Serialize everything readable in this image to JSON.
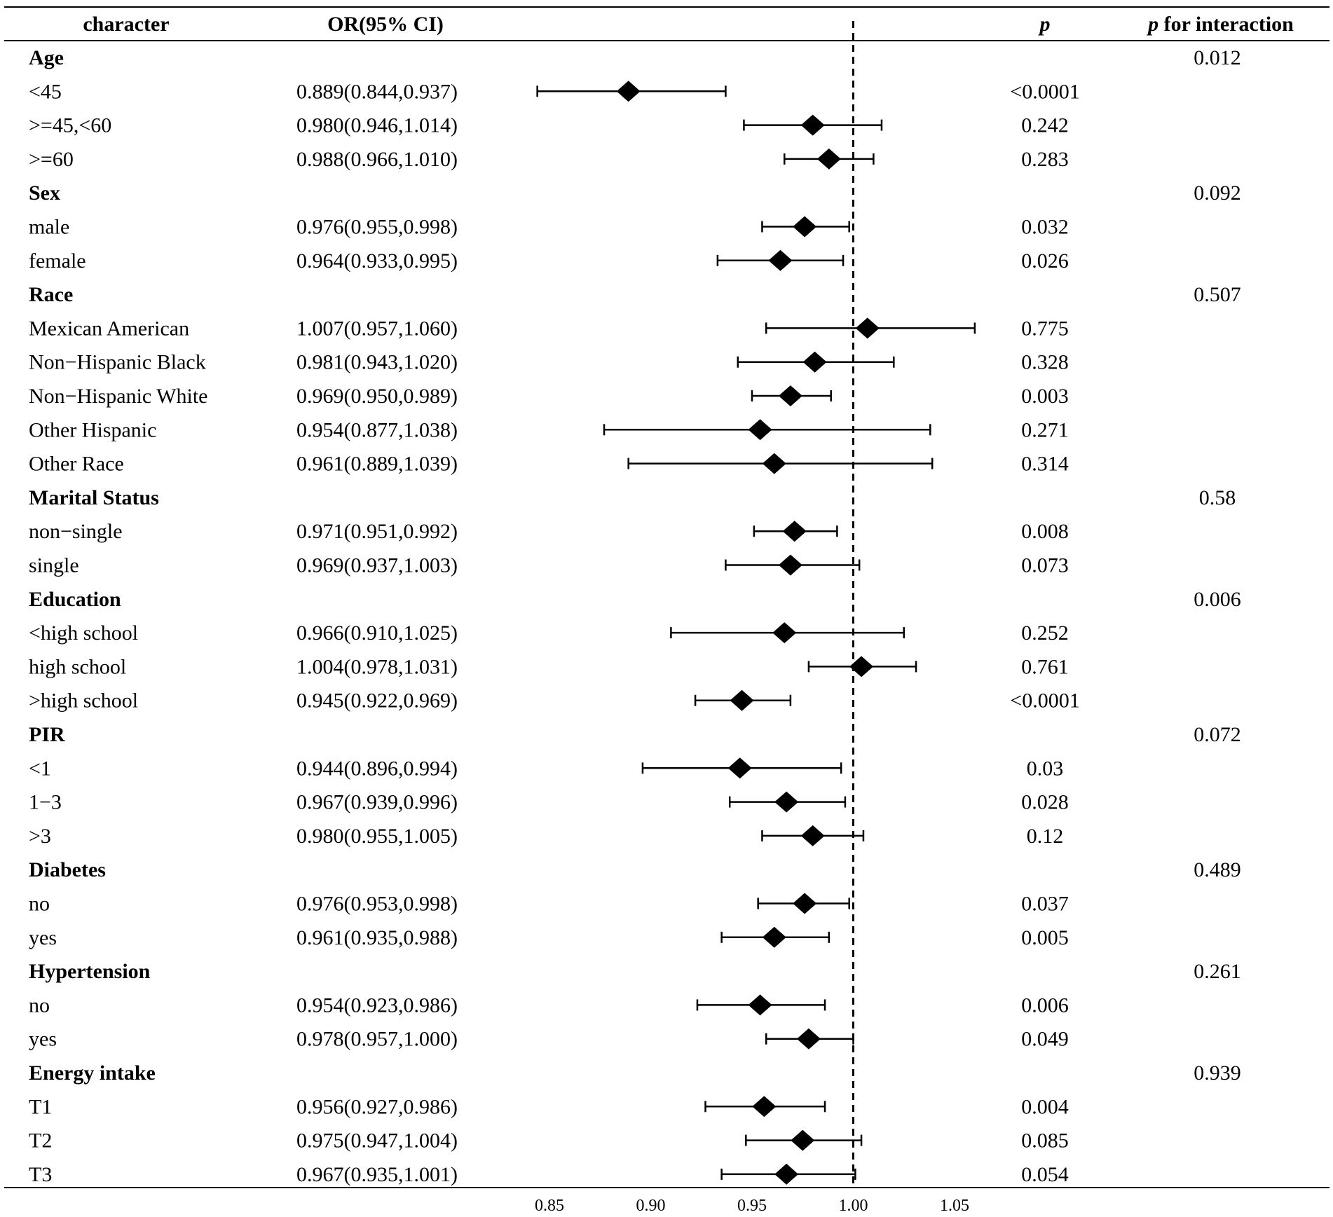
{
  "chart_data": {
    "type": "forest",
    "headers": {
      "character": "character",
      "or_ci": "OR(95% CI)",
      "p": "p",
      "p_interaction_p": "p",
      "p_interaction_rest": " for interaction"
    },
    "reference_line": 1.0,
    "xlim": [
      0.85,
      1.05
    ],
    "x_ticks": [
      0.85,
      0.9,
      0.95,
      1.0,
      1.05
    ],
    "x_tick_labels": [
      "0.85",
      "0.90",
      "0.95",
      "1.00",
      "1.05"
    ],
    "groups": [
      {
        "name": "Age",
        "p_interaction": "0.012",
        "rows": [
          {
            "label": "<45",
            "or_text": "0.889(0.844,0.937)",
            "or": 0.889,
            "lo": 0.844,
            "hi": 0.937,
            "p": "<0.0001"
          },
          {
            "label": ">=45,<60",
            "or_text": "0.980(0.946,1.014)",
            "or": 0.98,
            "lo": 0.946,
            "hi": 1.014,
            "p": "0.242"
          },
          {
            "label": ">=60",
            "or_text": "0.988(0.966,1.010)",
            "or": 0.988,
            "lo": 0.966,
            "hi": 1.01,
            "p": "0.283"
          }
        ]
      },
      {
        "name": "Sex",
        "p_interaction": "0.092",
        "rows": [
          {
            "label": "male",
            "or_text": "0.976(0.955,0.998)",
            "or": 0.976,
            "lo": 0.955,
            "hi": 0.998,
            "p": "0.032"
          },
          {
            "label": "female",
            "or_text": "0.964(0.933,0.995)",
            "or": 0.964,
            "lo": 0.933,
            "hi": 0.995,
            "p": "0.026"
          }
        ]
      },
      {
        "name": "Race",
        "p_interaction": "0.507",
        "rows": [
          {
            "label": "Mexican American",
            "or_text": "1.007(0.957,1.060)",
            "or": 1.007,
            "lo": 0.957,
            "hi": 1.06,
            "p": "0.775"
          },
          {
            "label": "Non−Hispanic Black",
            "or_text": "0.981(0.943,1.020)",
            "or": 0.981,
            "lo": 0.943,
            "hi": 1.02,
            "p": "0.328"
          },
          {
            "label": "Non−Hispanic White",
            "or_text": "0.969(0.950,0.989)",
            "or": 0.969,
            "lo": 0.95,
            "hi": 0.989,
            "p": "0.003"
          },
          {
            "label": "Other Hispanic",
            "or_text": "0.954(0.877,1.038)",
            "or": 0.954,
            "lo": 0.877,
            "hi": 1.038,
            "p": "0.271"
          },
          {
            "label": "Other Race",
            "or_text": "0.961(0.889,1.039)",
            "or": 0.961,
            "lo": 0.889,
            "hi": 1.039,
            "p": "0.314"
          }
        ]
      },
      {
        "name": "Marital Status",
        "p_interaction": "0.58",
        "rows": [
          {
            "label": "non−single",
            "or_text": "0.971(0.951,0.992)",
            "or": 0.971,
            "lo": 0.951,
            "hi": 0.992,
            "p": "0.008"
          },
          {
            "label": "single",
            "or_text": "0.969(0.937,1.003)",
            "or": 0.969,
            "lo": 0.937,
            "hi": 1.003,
            "p": "0.073"
          }
        ]
      },
      {
        "name": "Education",
        "p_interaction": "0.006",
        "rows": [
          {
            "label": "<high school",
            "or_text": "0.966(0.910,1.025)",
            "or": 0.966,
            "lo": 0.91,
            "hi": 1.025,
            "p": "0.252"
          },
          {
            "label": "high school",
            "or_text": "1.004(0.978,1.031)",
            "or": 1.004,
            "lo": 0.978,
            "hi": 1.031,
            "p": "0.761"
          },
          {
            "label": ">high school",
            "or_text": "0.945(0.922,0.969)",
            "or": 0.945,
            "lo": 0.922,
            "hi": 0.969,
            "p": "<0.0001"
          }
        ]
      },
      {
        "name": "PIR",
        "p_interaction": "0.072",
        "rows": [
          {
            "label": "<1",
            "or_text": "0.944(0.896,0.994)",
            "or": 0.944,
            "lo": 0.896,
            "hi": 0.994,
            "p": "0.03"
          },
          {
            "label": "1−3",
            "or_text": "0.967(0.939,0.996)",
            "or": 0.967,
            "lo": 0.939,
            "hi": 0.996,
            "p": "0.028"
          },
          {
            "label": ">3",
            "or_text": "0.980(0.955,1.005)",
            "or": 0.98,
            "lo": 0.955,
            "hi": 1.005,
            "p": "0.12"
          }
        ]
      },
      {
        "name": "Diabetes",
        "p_interaction": "0.489",
        "rows": [
          {
            "label": "no",
            "or_text": "0.976(0.953,0.998)",
            "or": 0.976,
            "lo": 0.953,
            "hi": 0.998,
            "p": "0.037"
          },
          {
            "label": "yes",
            "or_text": "0.961(0.935,0.988)",
            "or": 0.961,
            "lo": 0.935,
            "hi": 0.988,
            "p": "0.005"
          }
        ]
      },
      {
        "name": "Hypertension",
        "p_interaction": "0.261",
        "rows": [
          {
            "label": "no",
            "or_text": "0.954(0.923,0.986)",
            "or": 0.954,
            "lo": 0.923,
            "hi": 0.986,
            "p": "0.006"
          },
          {
            "label": "yes",
            "or_text": "0.978(0.957,1.000)",
            "or": 0.978,
            "lo": 0.957,
            "hi": 1.0,
            "p": "0.049"
          }
        ]
      },
      {
        "name": "Energy intake",
        "p_interaction": "0.939",
        "rows": [
          {
            "label": "T1",
            "or_text": "0.956(0.927,0.986)",
            "or": 0.956,
            "lo": 0.927,
            "hi": 0.986,
            "p": "0.004"
          },
          {
            "label": "T2",
            "or_text": "0.975(0.947,1.004)",
            "or": 0.975,
            "lo": 0.947,
            "hi": 1.004,
            "p": "0.085"
          },
          {
            "label": "T3",
            "or_text": "0.967(0.935,1.001)",
            "or": 0.967,
            "lo": 0.935,
            "hi": 1.001,
            "p": "0.054"
          }
        ]
      }
    ]
  }
}
